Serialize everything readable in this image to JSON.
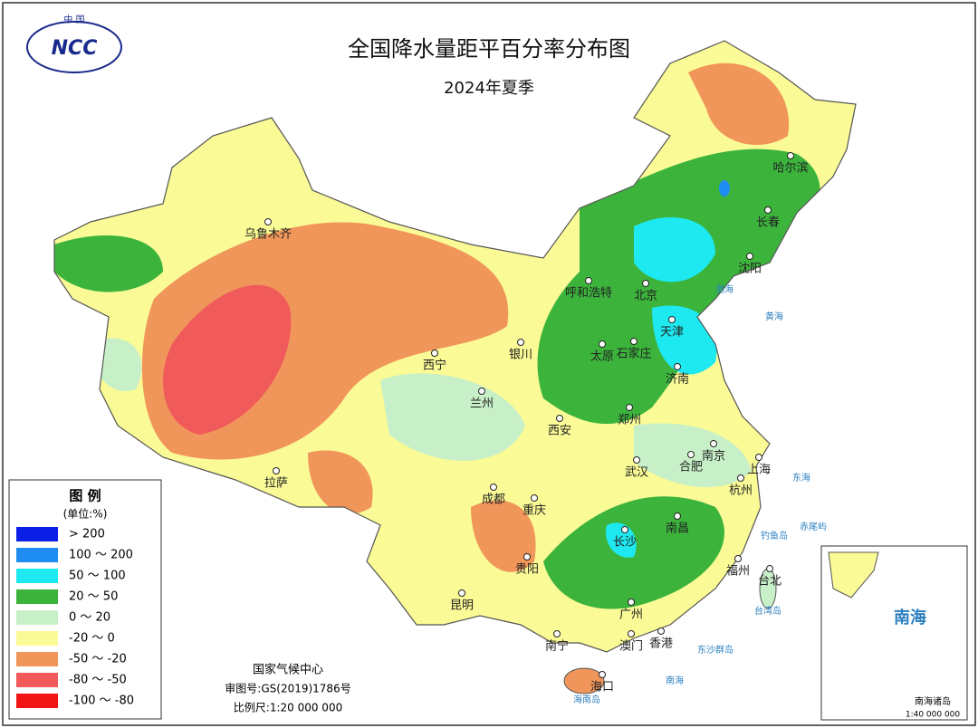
{
  "header": {
    "title": "全国降水量距平百分率分布图",
    "subtitle": "2024年夏季",
    "logo": "NCC",
    "logo_top": "中 国"
  },
  "legend": {
    "title": "图 例",
    "unit": "(单位:%)",
    "items": [
      {
        "label": "> 200",
        "color": "#0a1ee6"
      },
      {
        "label": "100 ～ 200",
        "color": "#1e8cf0"
      },
      {
        "label": "50 ～ 100",
        "color": "#1ee8f0"
      },
      {
        "label": "20 ～ 50",
        "color": "#3cb43c"
      },
      {
        "label": "0 ～ 20",
        "color": "#c8f0c8"
      },
      {
        "label": "-20 ～ 0",
        "color": "#fafa96"
      },
      {
        "label": "-50 ～ -20",
        "color": "#f0965a"
      },
      {
        "label": "-80 ～ -50",
        "color": "#f05a5a"
      },
      {
        "label": "-100 ～ -80",
        "color": "#f01414"
      }
    ]
  },
  "cities": [
    "乌鲁木齐",
    "拉萨",
    "西宁",
    "兰州",
    "银川",
    "呼和浩特",
    "北京",
    "天津",
    "石家庄",
    "太原",
    "济南",
    "郑州",
    "西安",
    "成都",
    "重庆",
    "武汉",
    "合肥",
    "南京",
    "上海",
    "杭州",
    "长沙",
    "南昌",
    "福州",
    "台北",
    "贵阳",
    "昆明",
    "南宁",
    "广州",
    "澳门",
    "香港",
    "海口",
    "哈尔滨",
    "长春",
    "沈阳"
  ],
  "seas": [
    "渤海",
    "黄海",
    "东海",
    "钓鱼岛",
    "赤尾屿",
    "台湾岛",
    "东沙群岛",
    "南海",
    "海南岛"
  ],
  "footer": {
    "agency": "国家气候中心",
    "approval": "审图号:GS(2019)1786号",
    "scale": "比例尺:1:20 000 000"
  },
  "inset": {
    "label": "南海",
    "islands": "南海诸岛",
    "scale": "1:40 000 000"
  }
}
